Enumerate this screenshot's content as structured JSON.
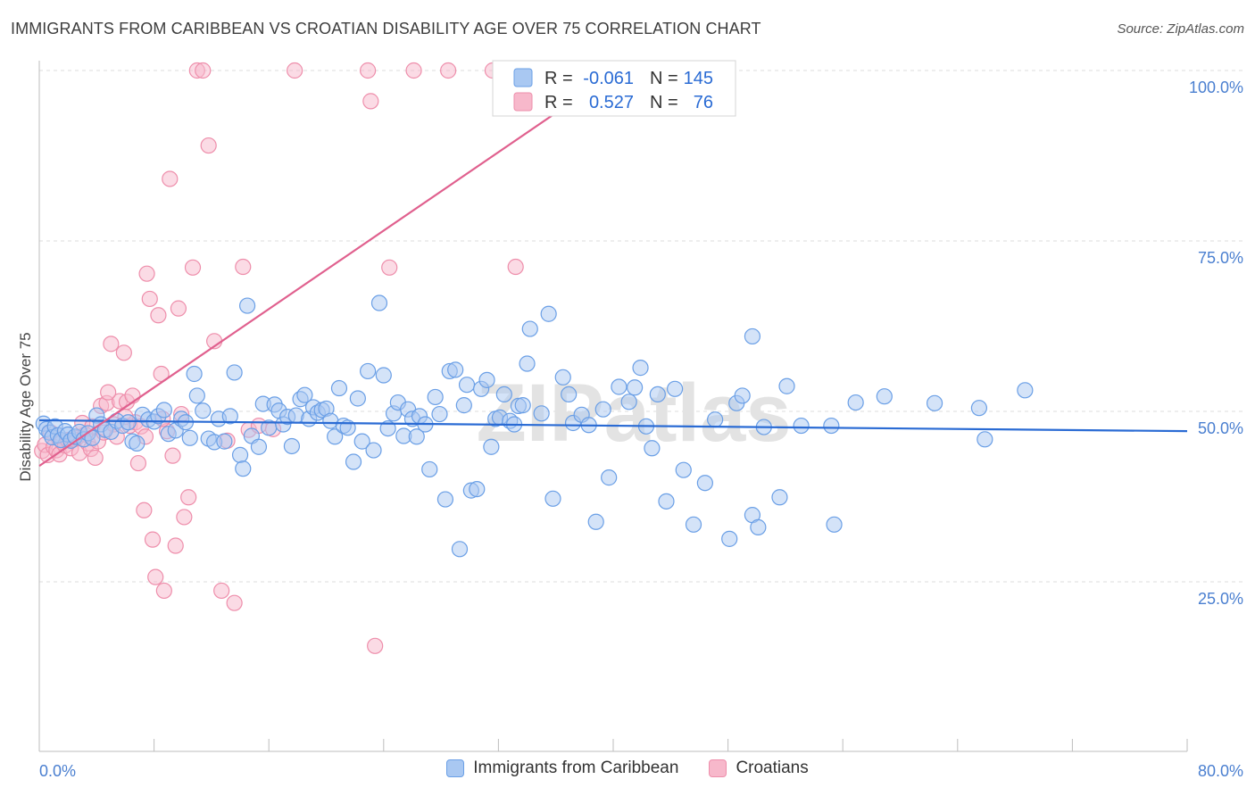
{
  "title": "IMMIGRANTS FROM CARIBBEAN VS CROATIAN DISABILITY AGE OVER 75 CORRELATION CHART",
  "source": "Source: ZipAtlas.com",
  "watermark": "ZIPatlas",
  "colors": {
    "blue_fill": "#a9c8f2",
    "blue_stroke": "#6a9fe6",
    "blue_line": "#2a6bd4",
    "pink_fill": "#f7b8cb",
    "pink_stroke": "#ee8eab",
    "pink_line": "#e0608e",
    "tick_text": "#4a7fd0",
    "grid": "#dcdcdc"
  },
  "legend": {
    "r_label": "R =",
    "n_label": "N =",
    "rows": [
      {
        "r": "-0.061",
        "n": "145"
      },
      {
        "r": "0.527",
        "n": "76"
      }
    ]
  },
  "chart_data": {
    "type": "scatter",
    "title": "IMMIGRANTS FROM CARIBBEAN VS CROATIAN DISABILITY AGE OVER 75 CORRELATION CHART",
    "xlabel": "",
    "ylabel": "Disability Age Over 75",
    "xlim": [
      0,
      80
    ],
    "ylim": [
      0,
      105
    ],
    "x_tick_labels": [
      "0.0%",
      "80.0%"
    ],
    "y_ticks": [
      25,
      50,
      75,
      100
    ],
    "y_tick_labels": [
      "25.0%",
      "50.0%",
      "75.0%",
      "100.0%"
    ],
    "grid": true,
    "legend_placement": "top-center",
    "series": [
      {
        "name": "Immigrants from Caribbean",
        "r": -0.061,
        "n": 145,
        "trend": {
          "x": [
            0,
            80
          ],
          "y": [
            48.7,
            47.1
          ]
        },
        "points": [
          [
            0.3,
            48.2
          ],
          [
            0.5,
            47.4
          ],
          [
            0.7,
            46.9
          ],
          [
            0.9,
            46.2
          ],
          [
            1.1,
            47.8
          ],
          [
            1.3,
            46.5
          ],
          [
            1.5,
            45.8
          ],
          [
            1.8,
            47.1
          ],
          [
            2.0,
            46.6
          ],
          [
            2.2,
            45.7
          ],
          [
            2.5,
            46.3
          ],
          [
            2.8,
            47.0
          ],
          [
            3.1,
            45.9
          ],
          [
            3.4,
            46.8
          ],
          [
            3.7,
            46.1
          ],
          [
            4.0,
            49.4
          ],
          [
            4.3,
            48.1
          ],
          [
            4.6,
            47.3
          ],
          [
            5.0,
            47.0
          ],
          [
            5.4,
            48.6
          ],
          [
            5.8,
            47.9
          ],
          [
            6.2,
            48.4
          ],
          [
            6.5,
            45.6
          ],
          [
            6.8,
            45.3
          ],
          [
            7.2,
            49.5
          ],
          [
            7.6,
            48.8
          ],
          [
            8.0,
            48.5
          ],
          [
            8.3,
            49.3
          ],
          [
            8.7,
            50.2
          ],
          [
            9.0,
            46.7
          ],
          [
            9.5,
            47.2
          ],
          [
            9.9,
            48.9
          ],
          [
            10.2,
            48.4
          ],
          [
            10.5,
            46.1
          ],
          [
            10.8,
            55.5
          ],
          [
            11.0,
            52.3
          ],
          [
            11.4,
            50.1
          ],
          [
            11.8,
            46.0
          ],
          [
            12.2,
            45.5
          ],
          [
            12.5,
            48.9
          ],
          [
            12.9,
            45.6
          ],
          [
            13.3,
            49.3
          ],
          [
            13.6,
            55.7
          ],
          [
            14.0,
            43.6
          ],
          [
            14.2,
            41.6
          ],
          [
            14.5,
            65.5
          ],
          [
            14.8,
            46.4
          ],
          [
            15.3,
            44.8
          ],
          [
            15.6,
            51.1
          ],
          [
            16.0,
            47.6
          ],
          [
            16.4,
            51.0
          ],
          [
            16.7,
            50.1
          ],
          [
            17.0,
            48.1
          ],
          [
            17.3,
            49.2
          ],
          [
            17.6,
            44.9
          ],
          [
            17.9,
            49.4
          ],
          [
            18.2,
            51.8
          ],
          [
            18.5,
            52.4
          ],
          [
            18.8,
            48.9
          ],
          [
            19.1,
            50.6
          ],
          [
            19.4,
            49.8
          ],
          [
            19.7,
            50.2
          ],
          [
            20.0,
            50.4
          ],
          [
            20.3,
            48.6
          ],
          [
            20.6,
            46.3
          ],
          [
            20.9,
            53.4
          ],
          [
            21.2,
            47.9
          ],
          [
            21.5,
            47.6
          ],
          [
            21.9,
            42.6
          ],
          [
            22.2,
            51.9
          ],
          [
            22.5,
            45.6
          ],
          [
            22.9,
            55.9
          ],
          [
            23.3,
            44.3
          ],
          [
            23.7,
            65.9
          ],
          [
            24.0,
            55.3
          ],
          [
            24.3,
            47.5
          ],
          [
            24.7,
            49.7
          ],
          [
            25.0,
            51.3
          ],
          [
            25.4,
            46.4
          ],
          [
            25.7,
            50.3
          ],
          [
            26.0,
            48.9
          ],
          [
            26.3,
            46.3
          ],
          [
            26.5,
            49.3
          ],
          [
            26.9,
            48.1
          ],
          [
            27.2,
            41.5
          ],
          [
            27.6,
            52.1
          ],
          [
            27.9,
            49.6
          ],
          [
            28.3,
            37.1
          ],
          [
            28.6,
            55.9
          ],
          [
            29.0,
            56.1
          ],
          [
            29.3,
            29.8
          ],
          [
            29.6,
            50.9
          ],
          [
            29.8,
            53.9
          ],
          [
            30.1,
            38.4
          ],
          [
            30.5,
            38.6
          ],
          [
            30.8,
            53.3
          ],
          [
            31.2,
            54.6
          ],
          [
            31.5,
            44.8
          ],
          [
            31.8,
            48.9
          ],
          [
            32.1,
            49.1
          ],
          [
            32.4,
            52.5
          ],
          [
            32.8,
            48.6
          ],
          [
            33.1,
            48.1
          ],
          [
            33.4,
            50.8
          ],
          [
            33.7,
            50.9
          ],
          [
            34.0,
            57.0
          ],
          [
            34.2,
            62.1
          ],
          [
            35.0,
            49.7
          ],
          [
            35.5,
            64.3
          ],
          [
            35.8,
            37.2
          ],
          [
            36.5,
            55.0
          ],
          [
            36.9,
            52.5
          ],
          [
            37.2,
            48.3
          ],
          [
            37.8,
            49.5
          ],
          [
            38.3,
            48.0
          ],
          [
            38.8,
            33.8
          ],
          [
            39.3,
            50.3
          ],
          [
            39.7,
            40.3
          ],
          [
            40.4,
            53.6
          ],
          [
            41.1,
            51.4
          ],
          [
            41.5,
            53.5
          ],
          [
            41.9,
            56.4
          ],
          [
            42.3,
            47.8
          ],
          [
            42.7,
            44.6
          ],
          [
            43.1,
            52.5
          ],
          [
            43.7,
            36.8
          ],
          [
            44.3,
            53.3
          ],
          [
            44.9,
            41.4
          ],
          [
            45.6,
            33.4
          ],
          [
            46.4,
            39.5
          ],
          [
            47.1,
            48.8
          ],
          [
            48.1,
            31.3
          ],
          [
            48.6,
            51.2
          ],
          [
            49.0,
            52.3
          ],
          [
            49.7,
            61.0
          ],
          [
            49.7,
            34.8
          ],
          [
            50.1,
            33.0
          ],
          [
            50.5,
            47.7
          ],
          [
            51.6,
            37.4
          ],
          [
            52.1,
            53.7
          ],
          [
            53.1,
            47.9
          ],
          [
            55.2,
            47.9
          ],
          [
            55.4,
            33.4
          ],
          [
            56.9,
            51.3
          ],
          [
            58.9,
            52.2
          ],
          [
            62.4,
            51.2
          ],
          [
            65.5,
            50.5
          ],
          [
            65.9,
            45.9
          ],
          [
            68.7,
            53.1
          ]
        ]
      },
      {
        "name": "Croatians",
        "r": 0.527,
        "n": 76,
        "trend": {
          "x": [
            0,
            38.8
          ],
          "y": [
            42.0,
            97.8
          ]
        },
        "points": [
          [
            0.2,
            44.2
          ],
          [
            0.4,
            45.1
          ],
          [
            0.6,
            43.6
          ],
          [
            0.8,
            46.9
          ],
          [
            1.0,
            44.8
          ],
          [
            1.2,
            44.3
          ],
          [
            1.4,
            43.7
          ],
          [
            1.6,
            45.5
          ],
          [
            1.8,
            45.0
          ],
          [
            2.0,
            45.8
          ],
          [
            2.2,
            44.6
          ],
          [
            2.4,
            45.9
          ],
          [
            2.6,
            46.1
          ],
          [
            2.8,
            43.9
          ],
          [
            3.0,
            48.3
          ],
          [
            3.2,
            46.6
          ],
          [
            3.4,
            45.3
          ],
          [
            3.6,
            44.5
          ],
          [
            3.9,
            43.2
          ],
          [
            4.1,
            45.6
          ],
          [
            4.3,
            50.8
          ],
          [
            4.5,
            46.9
          ],
          [
            4.7,
            51.2
          ],
          [
            5.0,
            59.9
          ],
          [
            5.2,
            48.1
          ],
          [
            5.4,
            46.3
          ],
          [
            5.6,
            51.5
          ],
          [
            5.9,
            58.6
          ],
          [
            6.1,
            51.4
          ],
          [
            6.3,
            47.9
          ],
          [
            6.5,
            52.3
          ],
          [
            6.7,
            48.4
          ],
          [
            6.9,
            42.4
          ],
          [
            7.1,
            47.8
          ],
          [
            7.3,
            35.5
          ],
          [
            7.5,
            70.2
          ],
          [
            7.7,
            66.5
          ],
          [
            7.9,
            31.2
          ],
          [
            8.1,
            25.7
          ],
          [
            8.3,
            64.1
          ],
          [
            8.5,
            55.5
          ],
          [
            8.7,
            23.7
          ],
          [
            8.9,
            47.1
          ],
          [
            9.1,
            84.1
          ],
          [
            9.3,
            43.5
          ],
          [
            9.5,
            30.3
          ],
          [
            9.7,
            65.1
          ],
          [
            9.9,
            49.6
          ],
          [
            10.1,
            34.5
          ],
          [
            10.4,
            37.4
          ],
          [
            10.7,
            71.1
          ],
          [
            11.0,
            100.0
          ],
          [
            11.4,
            100.0
          ],
          [
            11.8,
            89.0
          ],
          [
            12.2,
            60.3
          ],
          [
            12.7,
            23.7
          ],
          [
            13.1,
            45.7
          ],
          [
            13.6,
            21.9
          ],
          [
            14.2,
            71.2
          ],
          [
            14.6,
            47.3
          ],
          [
            15.3,
            47.9
          ],
          [
            16.3,
            47.4
          ],
          [
            17.8,
            100.0
          ],
          [
            22.9,
            100.0
          ],
          [
            23.1,
            95.5
          ],
          [
            23.4,
            15.6
          ],
          [
            24.4,
            71.1
          ],
          [
            26.1,
            100.0
          ],
          [
            28.5,
            100.0
          ],
          [
            31.6,
            100.0
          ],
          [
            33.2,
            71.2
          ],
          [
            4.8,
            52.8
          ],
          [
            6.0,
            49.2
          ],
          [
            7.4,
            46.3
          ],
          [
            8.6,
            48.9
          ],
          [
            3.7,
            47.8
          ]
        ]
      }
    ]
  },
  "bottom_legend": [
    {
      "label": "Immigrants from Caribbean"
    },
    {
      "label": "Croatians"
    }
  ]
}
